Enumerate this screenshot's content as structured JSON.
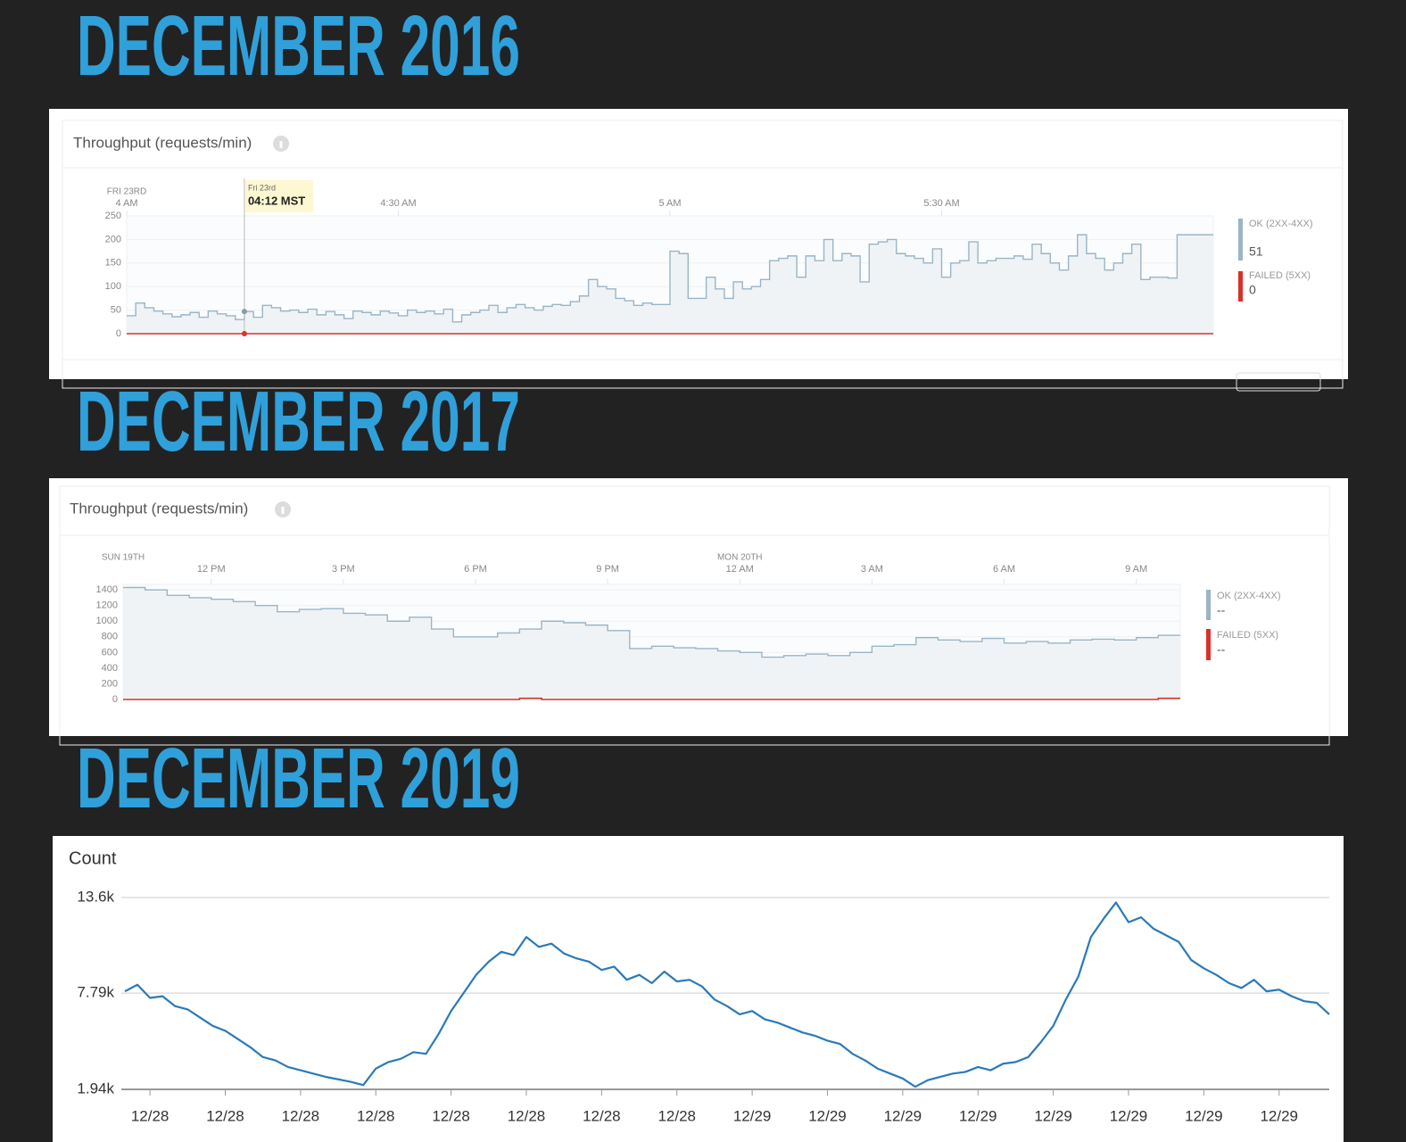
{
  "headings": [
    "DECEMBER 2016",
    "DECEMBER 2017",
    "DECEMBER 2019"
  ],
  "chart_data": [
    {
      "type": "step",
      "title": "Throughput (requests/min)",
      "date_labels": [
        {
          "value": 0,
          "label": "FRI 23RD"
        }
      ],
      "xlim": [
        0,
        120
      ],
      "xticks": [
        {
          "value": 0,
          "label": "4 AM"
        },
        {
          "value": 30,
          "label": "4:30 AM"
        },
        {
          "value": 60,
          "label": "5 AM"
        },
        {
          "value": 90,
          "label": "5:30 AM"
        }
      ],
      "ylim": [
        0,
        250
      ],
      "yticks": [
        0,
        50,
        100,
        150,
        200,
        250
      ],
      "grid": true,
      "series": [
        {
          "name": "OK (2XX-4XX)",
          "color": "#9ab5c6",
          "current": 51,
          "values": [
            38,
            65,
            55,
            48,
            42,
            36,
            40,
            45,
            35,
            48,
            42,
            38,
            30,
            47,
            35,
            60,
            55,
            48,
            50,
            45,
            52,
            40,
            47,
            40,
            32,
            48,
            45,
            40,
            48,
            44,
            38,
            50,
            45,
            48,
            42,
            52,
            25,
            40,
            45,
            50,
            60,
            45,
            55,
            62,
            55,
            50,
            58,
            62,
            60,
            68,
            80,
            115,
            100,
            95,
            75,
            70,
            60,
            65,
            62,
            62,
            175,
            170,
            75,
            75,
            120,
            95,
            75,
            110,
            95,
            100,
            115,
            155,
            160,
            165,
            120,
            165,
            155,
            200,
            155,
            170,
            165,
            110,
            190,
            195,
            200,
            170,
            165,
            160,
            150,
            180,
            120,
            150,
            155,
            195,
            150,
            155,
            160,
            160,
            165,
            158,
            190,
            170,
            150,
            135,
            165,
            210,
            170,
            160,
            135,
            150,
            170,
            190,
            115,
            120,
            120,
            118,
            210,
            210,
            210,
            210
          ]
        },
        {
          "name": "FAILED (5XX)",
          "color": "#d9312a",
          "current": 0,
          "values": [
            0,
            0,
            0,
            0,
            0,
            0,
            0,
            0,
            0,
            0,
            0,
            0,
            0,
            0,
            0,
            0,
            0,
            0,
            0,
            0,
            0,
            0,
            0,
            0,
            0,
            0,
            0,
            0,
            0,
            0,
            0,
            0,
            0,
            0,
            0,
            0,
            0,
            0,
            0,
            0,
            0,
            0,
            0,
            0,
            0,
            0,
            0,
            0,
            0,
            0,
            0,
            0,
            0,
            0,
            0,
            0,
            0,
            0,
            0,
            0,
            0,
            0,
            0,
            0,
            0,
            0,
            0,
            0,
            0,
            0,
            0,
            0,
            0,
            0,
            0,
            0,
            0,
            0,
            0,
            0,
            0,
            0,
            0,
            0,
            0,
            0,
            0,
            0,
            0,
            0,
            0,
            0,
            0,
            0,
            0,
            0,
            0,
            0,
            0,
            0,
            0,
            0,
            0,
            0,
            0,
            0,
            0,
            0,
            0,
            0,
            0,
            0,
            0,
            0,
            0,
            0,
            0,
            0,
            0,
            0
          ]
        }
      ],
      "tooltip": {
        "date": "Fri 23rd",
        "time": "04:12 MST",
        "x": 13
      }
    },
    {
      "type": "step",
      "title": "Throughput (requests/min)",
      "date_labels": [
        {
          "value": 0,
          "label": "SUN 19TH"
        },
        {
          "value": 28,
          "label": "MON 20TH"
        }
      ],
      "xlim": [
        0,
        48
      ],
      "xticks": [
        {
          "value": 4,
          "label": "12 PM"
        },
        {
          "value": 10,
          "label": "3 PM"
        },
        {
          "value": 16,
          "label": "6 PM"
        },
        {
          "value": 22,
          "label": "9 PM"
        },
        {
          "value": 28,
          "label": "12 AM"
        },
        {
          "value": 34,
          "label": "3 AM"
        },
        {
          "value": 40,
          "label": "6 AM"
        },
        {
          "value": 46,
          "label": "9 AM"
        }
      ],
      "ylim": [
        0,
        1470
      ],
      "yticks": [
        0,
        200,
        400,
        600,
        800,
        1000,
        1200,
        1400
      ],
      "grid": true,
      "series": [
        {
          "name": "OK (2XX-4XX)",
          "color": "#9ab5c6",
          "current": "--",
          "values": [
            1430,
            1400,
            1330,
            1300,
            1280,
            1250,
            1200,
            1120,
            1150,
            1160,
            1100,
            1080,
            1000,
            1050,
            900,
            800,
            800,
            850,
            900,
            1000,
            980,
            950,
            880,
            650,
            680,
            660,
            650,
            620,
            600,
            540,
            560,
            580,
            560,
            600,
            680,
            700,
            790,
            760,
            740,
            780,
            720,
            740,
            720,
            760,
            770,
            760,
            790,
            820
          ]
        },
        {
          "name": "FAILED (5XX)",
          "color": "#d9312a",
          "current": "--",
          "values": [
            0,
            0,
            0,
            0,
            0,
            0,
            0,
            0,
            0,
            0,
            0,
            0,
            0,
            0,
            0,
            0,
            0,
            0,
            15,
            0,
            0,
            0,
            0,
            0,
            0,
            0,
            0,
            0,
            0,
            0,
            0,
            0,
            0,
            0,
            0,
            0,
            0,
            0,
            0,
            0,
            0,
            0,
            0,
            0,
            0,
            0,
            0,
            15
          ]
        }
      ]
    },
    {
      "type": "line",
      "title": "Count",
      "xlim": [
        0,
        96
      ],
      "xticks": [
        {
          "value": 2,
          "label": "12/28"
        },
        {
          "value": 8,
          "label": "12/28"
        },
        {
          "value": 14,
          "label": "12/28"
        },
        {
          "value": 20,
          "label": "12/28"
        },
        {
          "value": 26,
          "label": "12/28"
        },
        {
          "value": 32,
          "label": "12/28"
        },
        {
          "value": 38,
          "label": "12/28"
        },
        {
          "value": 44,
          "label": "12/28"
        },
        {
          "value": 50,
          "label": "12/29"
        },
        {
          "value": 56,
          "label": "12/29"
        },
        {
          "value": 62,
          "label": "12/29"
        },
        {
          "value": 68,
          "label": "12/29"
        },
        {
          "value": 74,
          "label": "12/29"
        },
        {
          "value": 80,
          "label": "12/29"
        },
        {
          "value": 86,
          "label": "12/29"
        },
        {
          "value": 92,
          "label": "12/29"
        }
      ],
      "ylim": [
        1940,
        13600
      ],
      "yticks": [
        {
          "value": 1940,
          "label": "1.94k"
        },
        {
          "value": 7790,
          "label": "7.79k"
        },
        {
          "value": 13600,
          "label": "13.6k"
        }
      ],
      "grid": true,
      "color": "#2a7ab9",
      "values": [
        7900,
        8300,
        7500,
        7600,
        7000,
        6800,
        6300,
        5800,
        5500,
        5000,
        4500,
        3900,
        3700,
        3300,
        3100,
        2900,
        2700,
        2550,
        2400,
        2200,
        3200,
        3600,
        3800,
        4200,
        4100,
        5300,
        6700,
        7800,
        8900,
        9700,
        10300,
        10100,
        11200,
        10600,
        10800,
        10200,
        9900,
        9700,
        9200,
        9400,
        8600,
        8900,
        8400,
        9100,
        8500,
        8600,
        8200,
        7400,
        7000,
        6500,
        6700,
        6200,
        6000,
        5700,
        5400,
        5200,
        4900,
        4700,
        4100,
        3700,
        3200,
        2900,
        2600,
        2100,
        2500,
        2700,
        2900,
        3000,
        3300,
        3100,
        3500,
        3600,
        3900,
        4800,
        5800,
        7400,
        8800,
        11200,
        12300,
        13300,
        12100,
        12400,
        11700,
        11300,
        10900,
        9800,
        9300,
        8900,
        8400,
        8100,
        8600,
        7900,
        8000,
        7600,
        7300,
        7200,
        6500
      ]
    }
  ]
}
